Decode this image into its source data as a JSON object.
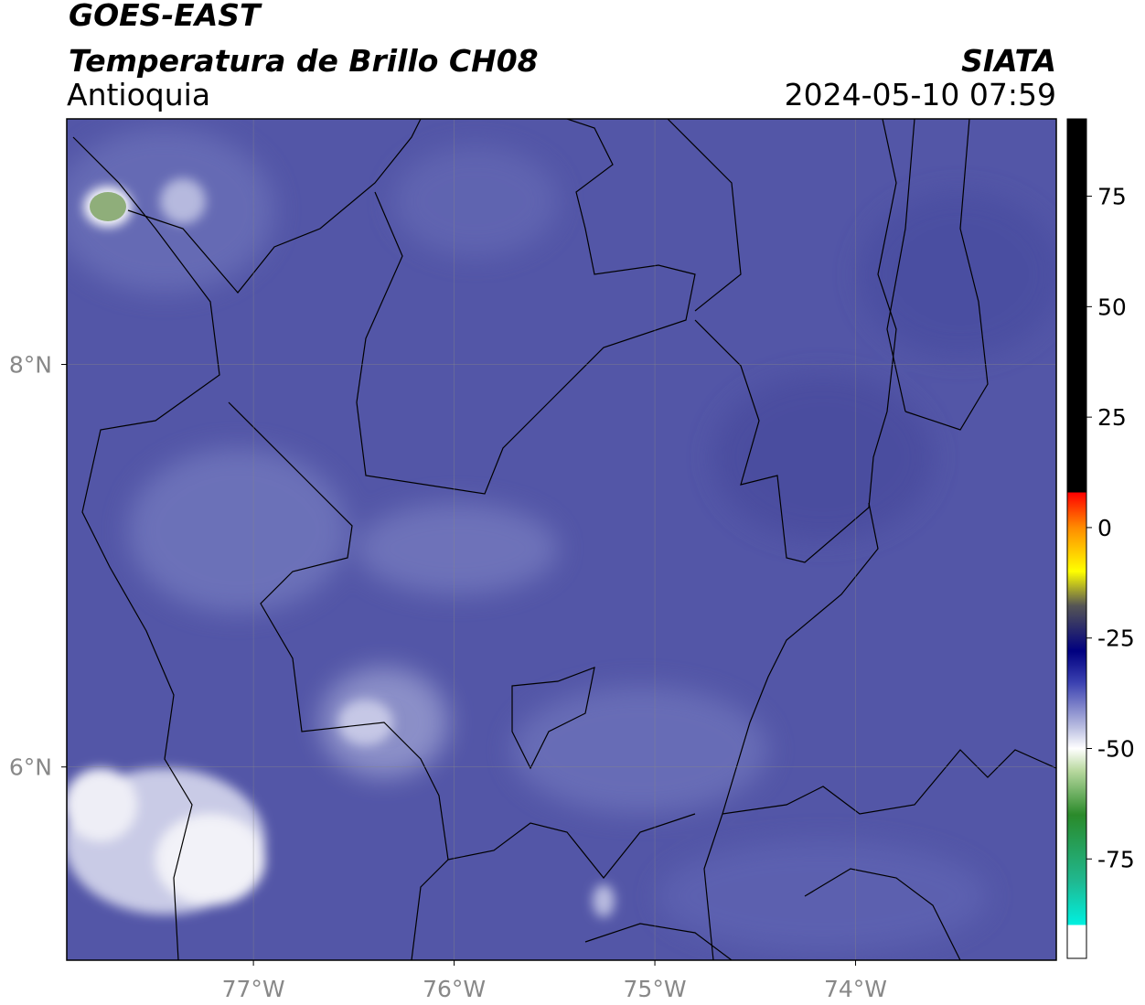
{
  "header": {
    "title": "GOES-EAST",
    "subtitle": "Temperatura de Brillo CH08",
    "region": "Antioquia",
    "source": "SIATA",
    "datetime": "2024-05-10 07:59"
  },
  "map": {
    "xlim": [
      -77.93,
      -73.0
    ],
    "ylim": [
      5.04,
      9.22
    ],
    "xticks": [
      {
        "value": -77,
        "label": "77°W"
      },
      {
        "value": -76,
        "label": "76°W"
      },
      {
        "value": -75,
        "label": "75°W"
      },
      {
        "value": -74,
        "label": "74°W"
      }
    ],
    "yticks": [
      {
        "value": 6,
        "label": "6°N"
      },
      {
        "value": 8,
        "label": "8°N"
      }
    ],
    "grid": true
  },
  "colorbar": {
    "lim": [
      -97.5,
      92.5
    ],
    "ticks": [
      75,
      50,
      25,
      0,
      -25,
      -50,
      -75
    ]
  }
}
